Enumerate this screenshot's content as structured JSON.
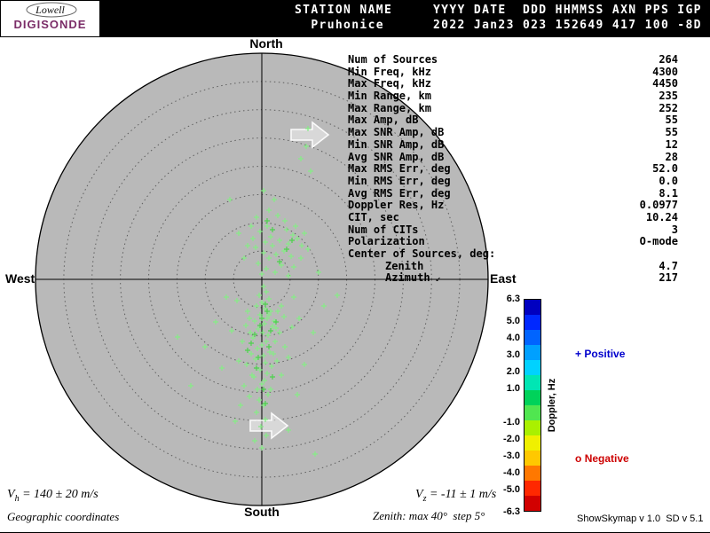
{
  "header": {
    "logo": {
      "line1": "Lowell",
      "line2": "DIGISONDE",
      "brand_color": "#7b2d68"
    },
    "line1": "STATION NAME     YYYY DATE  DDD HHMMSS AXN PPS IGP",
    "line2": "  Pruhonice      2022 Jan23 023 152649 417 100 -8D"
  },
  "compass": {
    "north": "North",
    "south": "South",
    "west": "West",
    "east": "East"
  },
  "stats": {
    "rows": [
      [
        "Num of Sources",
        "264"
      ],
      [
        "Min Freq, kHz",
        "4300"
      ],
      [
        "Max Freq, kHz",
        "4450"
      ],
      [
        "Min Range, km",
        "235"
      ],
      [
        "Max Range, km",
        "252"
      ],
      [
        "Max Amp, dB",
        "55"
      ],
      [
        "Max SNR Amp, dB",
        "55"
      ],
      [
        "Min SNR Amp, dB",
        "12"
      ],
      [
        "Avg SNR Amp, dB",
        "28"
      ],
      [
        "Max RMS Err, deg",
        "52.0"
      ],
      [
        "Min RMS Err, deg",
        "0.0"
      ],
      [
        "Avg RMS Err, deg",
        "8.1"
      ],
      [
        "Doppler Res, Hz",
        "0.0977"
      ],
      [
        "CIT, sec",
        "10.24"
      ],
      [
        "Num of CITs",
        "3"
      ],
      [
        "Polarization",
        "O-mode"
      ]
    ],
    "center_header": "Center of Sources, deg:",
    "center_rows": [
      {
        "label": "Zenith",
        "value": "4.7"
      },
      {
        "label": "Azimuth",
        "value": "217",
        "arrow": "↙"
      }
    ]
  },
  "colorbar": {
    "title": "Doppler, Hz",
    "range": [
      -6.3,
      6.3
    ],
    "ticks": [
      "6.3",
      "5.0",
      "4.0",
      "3.0",
      "2.0",
      "1.0",
      "-1.0",
      "-2.0",
      "-3.0",
      "-4.0",
      "-5.0",
      "-6.3"
    ],
    "colors": [
      "#0000c0",
      "#0028ff",
      "#0064ff",
      "#00a0ff",
      "#00d2ff",
      "#00e6b4",
      "#00d25a",
      "#50e650",
      "#aaf000",
      "#f0f000",
      "#ffc800",
      "#ff7800",
      "#ff2800",
      "#d20000"
    ]
  },
  "legend": {
    "positive": {
      "marker": "+",
      "label": "Positive",
      "color": "#0000cd"
    },
    "negative": {
      "marker": "o",
      "label": "Negative",
      "color": "#cd0000"
    }
  },
  "footer": {
    "vh": {
      "v": "V",
      "sub": "h",
      "rest": " = 140 ± 20 m/s"
    },
    "vz": {
      "v": "V",
      "sub": "z",
      "rest": " = -11 ± 1 m/s"
    },
    "coords": "Geographic coordinates",
    "zenith_note": "Zenith: max 40°  step 5°",
    "version": "ShowSkymap v 1.0  SD v 5.1"
  },
  "chart_data": {
    "type": "scatter",
    "projection": "polar-skymap",
    "zenith_max_deg": 40,
    "zenith_step_deg": 5,
    "rings_deg": [
      5,
      10,
      15,
      20,
      25,
      30,
      35,
      40
    ],
    "compass": [
      "North",
      "East",
      "South",
      "West"
    ],
    "colorbar": {
      "label": "Doppler, Hz",
      "min": -6.3,
      "max": 6.3
    },
    "marker": "plus",
    "center": [
      295,
      315
    ],
    "radius_px": 255,
    "point_colors": {
      "main": "#86ec86",
      "alt": "#4cd24c"
    },
    "units": "points are [dx,dy] pixel offsets from plot center; +x=East, +y=South",
    "points": [
      [
        2,
        8
      ],
      [
        5,
        14
      ],
      [
        -3,
        18
      ],
      [
        8,
        22
      ],
      [
        0,
        26
      ],
      [
        -6,
        30
      ],
      [
        4,
        33
      ],
      [
        10,
        36
      ],
      [
        -2,
        40
      ],
      [
        6,
        44
      ],
      [
        -8,
        47
      ],
      [
        3,
        50
      ],
      [
        12,
        53
      ],
      [
        -4,
        56
      ],
      [
        1,
        60
      ],
      [
        7,
        63
      ],
      [
        -10,
        66
      ],
      [
        5,
        70
      ],
      [
        0,
        74
      ],
      [
        -5,
        78
      ],
      [
        9,
        82
      ],
      [
        2,
        86
      ],
      [
        -7,
        90
      ],
      [
        4,
        94
      ],
      [
        11,
        98
      ],
      [
        -2,
        102
      ],
      [
        6,
        106
      ],
      [
        -9,
        110
      ],
      [
        3,
        114
      ],
      [
        0,
        118
      ],
      [
        -5,
        124
      ],
      [
        7,
        130
      ],
      [
        -3,
        136
      ],
      [
        2,
        142
      ],
      [
        -6,
        150
      ],
      [
        4,
        158
      ],
      [
        -1,
        166
      ],
      [
        8,
        40
      ],
      [
        14,
        47
      ],
      [
        18,
        36
      ],
      [
        22,
        30
      ],
      [
        16,
        55
      ],
      [
        20,
        60
      ],
      [
        25,
        42
      ],
      [
        -14,
        44
      ],
      [
        -18,
        52
      ],
      [
        -13,
        60
      ],
      [
        -16,
        36
      ],
      [
        -22,
        70
      ],
      [
        -12,
        84
      ],
      [
        -17,
        96
      ],
      [
        -11,
        108
      ],
      [
        15,
        70
      ],
      [
        13,
        84
      ],
      [
        17,
        92
      ],
      [
        -20,
        120
      ],
      [
        -14,
        132
      ],
      [
        10,
        124
      ],
      [
        -24,
        142
      ],
      [
        5,
        176
      ],
      [
        -8,
        182
      ],
      [
        0,
        190
      ],
      [
        0,
        -6
      ],
      [
        5,
        -12
      ],
      [
        -4,
        -18
      ],
      [
        8,
        -24
      ],
      [
        2,
        -30
      ],
      [
        -7,
        -36
      ],
      [
        4,
        -42
      ],
      [
        10,
        -48
      ],
      [
        -2,
        -54
      ],
      [
        6,
        -60
      ],
      [
        12,
        -38
      ],
      [
        16,
        -28
      ],
      [
        20,
        -44
      ],
      [
        25,
        -32
      ],
      [
        30,
        -40
      ],
      [
        35,
        -50
      ],
      [
        28,
        -56
      ],
      [
        40,
        -46
      ],
      [
        45,
        -38
      ],
      [
        33,
        -26
      ],
      [
        22,
        -16
      ],
      [
        15,
        -8
      ],
      [
        38,
        -60
      ],
      [
        48,
        -52
      ],
      [
        26,
        -66
      ],
      [
        18,
        -72
      ],
      [
        8,
        -78
      ],
      [
        -6,
        -70
      ],
      [
        -12,
        -60
      ],
      [
        -10,
        -46
      ],
      [
        -16,
        -38
      ],
      [
        44,
        -24
      ],
      [
        52,
        -34
      ],
      [
        36,
        -14
      ],
      [
        30,
        -4
      ],
      [
        50,
        -150
      ],
      [
        44,
        -136
      ],
      [
        55,
        -122
      ],
      [
        -40,
        20
      ],
      [
        -52,
        48
      ],
      [
        -64,
        76
      ],
      [
        -45,
        100
      ],
      [
        -95,
        65
      ],
      [
        -80,
        120
      ],
      [
        60,
        197
      ],
      [
        30,
        170
      ],
      [
        -30,
        160
      ],
      [
        70,
        30
      ],
      [
        85,
        18
      ],
      [
        64,
        -8
      ],
      [
        58,
        60
      ],
      [
        48,
        96
      ],
      [
        40,
        130
      ],
      [
        -36,
        -90
      ],
      [
        52,
        -170
      ],
      [
        -28,
        24
      ],
      [
        -34,
        58
      ],
      [
        26,
        76
      ],
      [
        34,
        54
      ],
      [
        30,
        88
      ],
      [
        22,
        108
      ],
      [
        -26,
        92
      ],
      [
        36,
        20
      ],
      [
        42,
        44
      ],
      [
        -20,
        -24
      ],
      [
        -26,
        -52
      ],
      [
        14,
        -90
      ],
      [
        2,
        -100
      ]
    ],
    "points_alt": [
      [
        4,
        28
      ],
      [
        -2,
        52
      ],
      [
        8,
        76
      ],
      [
        -6,
        100
      ],
      [
        2,
        124
      ],
      [
        10,
        58
      ],
      [
        -12,
        72
      ],
      [
        6,
        36
      ],
      [
        -4,
        88
      ],
      [
        12,
        110
      ],
      [
        0,
        44
      ],
      [
        -8,
        62
      ],
      [
        16,
        48
      ],
      [
        -16,
        80
      ],
      [
        4,
        140
      ],
      [
        20,
        -20
      ],
      [
        28,
        -34
      ],
      [
        12,
        -56
      ],
      [
        34,
        -44
      ],
      [
        6,
        -66
      ]
    ]
  }
}
